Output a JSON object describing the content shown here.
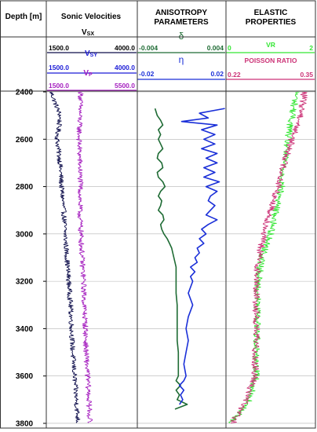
{
  "colors": {
    "vsx": "#0d0d4a",
    "vsy": "#1b1bd6",
    "vp": "#a51fbf",
    "delta": "#1e6b34",
    "eta": "#1a2fd8",
    "vr": "#33e633",
    "poisson": "#cc3377",
    "frame": "#333333",
    "grid": "#b3b3b3"
  },
  "tracks": {
    "depth": {
      "title": "Depth [m]"
    },
    "sonic": {
      "title": "Sonic Velocities"
    },
    "anisotropy": {
      "title_line1": "ANISOTROPY",
      "title_line2": "PARAMETERS"
    },
    "elastic": {
      "title_line1": "ELASTIC",
      "title_line2": "PROPERTIES"
    }
  },
  "scales": {
    "vsx": {
      "label": "Vsx",
      "label_main": "V",
      "label_sub": "SX",
      "min": "1500.0",
      "max": "4000.0"
    },
    "vsy": {
      "label": "Vsy",
      "label_main": "V",
      "label_sub": "SY",
      "min": "1500.0",
      "max": "4000.0"
    },
    "vp": {
      "label": "Vp",
      "label_main": "V",
      "label_sub": "P",
      "min": "1500.0",
      "max": "5500.0"
    },
    "delta": {
      "label": "δ",
      "min": "-0.004",
      "max": "0.004"
    },
    "eta": {
      "label": "η",
      "min": "-0.02",
      "max": "0.02"
    },
    "vr": {
      "label": "VR",
      "min": "0",
      "max": "2"
    },
    "poisson": {
      "label": "POISSON RATIO",
      "min": "0.22",
      "max": "0.35"
    }
  },
  "depth_ticks": [
    "2400",
    "2600",
    "2800",
    "3000",
    "3200",
    "3400",
    "3600",
    "3800"
  ],
  "chart_data": {
    "type": "line",
    "y_axis": {
      "label": "Depth [m]",
      "range": [
        2400,
        3820
      ],
      "inverted": true
    },
    "series": [
      {
        "name": "Vsx",
        "track": "sonic",
        "range": [
          1500,
          4000
        ],
        "noise": 0.028,
        "depth": [
          2400,
          2500,
          2600,
          2700,
          2800,
          2900,
          3000,
          3100,
          3200,
          3300,
          3400,
          3500,
          3600,
          3700,
          3800
        ],
        "values": [
          1610,
          1860,
          1780,
          1860,
          1900,
          1960,
          2000,
          2050,
          2100,
          2150,
          2180,
          2210,
          2260,
          2310,
          2360
        ]
      },
      {
        "name": "Vp",
        "track": "sonic",
        "range": [
          1500,
          5500
        ],
        "noise": 0.03,
        "depth": [
          2400,
          2500,
          2600,
          2700,
          2800,
          2900,
          3000,
          3100,
          3200,
          3300,
          3400,
          3500,
          3600,
          3700,
          3800
        ],
        "values": [
          3000,
          2950,
          2920,
          2950,
          2980,
          2950,
          3000,
          3050,
          3120,
          3150,
          3200,
          3230,
          3300,
          3350,
          3400
        ]
      },
      {
        "name": "δ",
        "track": "anisotropy",
        "range": [
          -0.004,
          0.004
        ],
        "noise": 0,
        "depth": [
          2470,
          2500,
          2520,
          2540,
          2560,
          2580,
          2600,
          2620,
          2640,
          2660,
          2680,
          2700,
          2720,
          2740,
          2760,
          2780,
          2800,
          2820,
          2840,
          2860,
          2880,
          2900,
          2920,
          2940,
          2960,
          2980,
          3000,
          3020,
          3040,
          3060,
          3080,
          3100,
          3120,
          3140,
          3160,
          3180,
          3200,
          3250,
          3300,
          3350,
          3400,
          3450,
          3500,
          3550,
          3600,
          3620,
          3640,
          3660,
          3680,
          3700,
          3720,
          3740
        ],
        "values": [
          -0.0024,
          -0.0022,
          -0.0019,
          -0.0017,
          -0.0021,
          -0.0019,
          -0.0021,
          -0.0019,
          -0.0017,
          -0.0021,
          -0.0022,
          -0.0018,
          -0.0017,
          -0.0022,
          -0.0021,
          -0.0017,
          -0.0015,
          -0.0019,
          -0.0021,
          -0.0018,
          -0.0019,
          -0.0021,
          -0.0017,
          -0.0016,
          -0.0019,
          -0.0018,
          -0.0016,
          -0.0013,
          -0.0011,
          -0.0009,
          -0.0008,
          -0.0007,
          -0.0006,
          -0.0005,
          -0.0005,
          -0.0005,
          -0.0005,
          -0.0005,
          -0.0004,
          -0.0004,
          -0.0004,
          -0.0004,
          -0.0003,
          -0.0003,
          -0.0003,
          -0.0005,
          -0.0001,
          -0.0005,
          -0.0002,
          -0.0004,
          0.0005,
          -0.0006
        ]
      },
      {
        "name": "η",
        "track": "anisotropy",
        "range": [
          -0.02,
          0.02
        ],
        "noise": 0,
        "depth": [
          2470,
          2490,
          2510,
          2525,
          2540,
          2560,
          2580,
          2600,
          2620,
          2640,
          2660,
          2680,
          2700,
          2720,
          2740,
          2760,
          2780,
          2800,
          2820,
          2840,
          2860,
          2880,
          2900,
          2920,
          2940,
          2960,
          2980,
          3000,
          3020,
          3040,
          3060,
          3080,
          3100,
          3120,
          3140,
          3160,
          3180,
          3200,
          3250,
          3300,
          3350,
          3400,
          3450,
          3500,
          3550,
          3600,
          3620,
          3640,
          3660,
          3680,
          3700,
          3720
        ],
        "values": [
          0.0195,
          0.008,
          0.012,
          0.0,
          0.016,
          0.009,
          0.015,
          0.01,
          0.015,
          0.009,
          0.016,
          0.011,
          0.016,
          0.01,
          0.015,
          0.01,
          0.017,
          0.011,
          0.016,
          0.013,
          0.012,
          0.015,
          0.013,
          0.011,
          0.016,
          0.012,
          0.009,
          0.011,
          0.008,
          0.01,
          0.007,
          0.008,
          0.006,
          0.007,
          0.004,
          0.006,
          0.004,
          0.005,
          0.003,
          0.005,
          0.003,
          0.002,
          0.003,
          0.002,
          0.001,
          0.002,
          0.001,
          -0.001,
          0.001,
          -0.0005,
          0.0005,
          -0.001
        ]
      },
      {
        "name": "VR",
        "track": "elastic",
        "range": [
          0,
          2
        ],
        "noise": 0.04,
        "depth": [
          2400,
          2500,
          2600,
          2700,
          2800,
          2900,
          3000,
          3100,
          3200,
          3300,
          3400,
          3500,
          3600,
          3700,
          3800
        ],
        "values": [
          1.58,
          1.48,
          1.38,
          1.3,
          1.24,
          1.12,
          1.0,
          0.8,
          0.72,
          0.7,
          0.7,
          0.68,
          0.68,
          0.52,
          0.12
        ]
      },
      {
        "name": "POISSON RATIO",
        "track": "elastic",
        "range": [
          0.22,
          0.35
        ],
        "noise": 0.04,
        "depth": [
          2400,
          2500,
          2600,
          2700,
          2800,
          2900,
          3000,
          3100,
          3200,
          3300,
          3400,
          3500,
          3600,
          3700,
          3800
        ],
        "values": [
          0.334,
          0.329,
          0.316,
          0.305,
          0.296,
          0.285,
          0.275,
          0.268,
          0.264,
          0.264,
          0.264,
          0.263,
          0.262,
          0.25,
          0.229
        ]
      }
    ]
  }
}
